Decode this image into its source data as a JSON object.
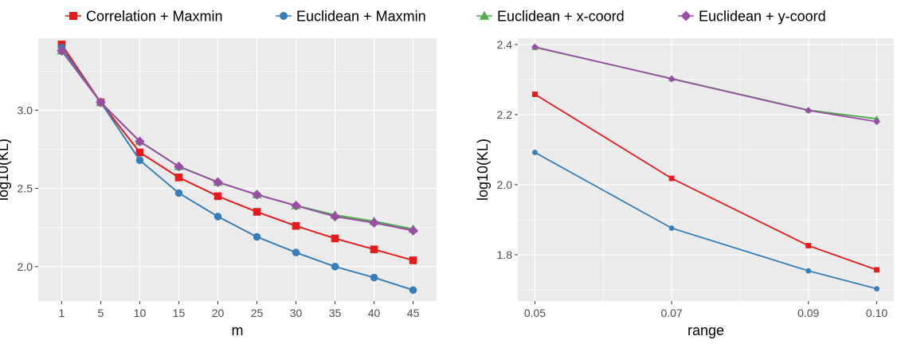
{
  "legend": [
    {
      "name": "Correlation + Maxmin",
      "color": "#e41a1c",
      "marker": "square"
    },
    {
      "name": "Euclidean + Maxmin",
      "color": "#377eb8",
      "marker": "circle"
    },
    {
      "name": "Euclidean + x-coord",
      "color": "#4daf4a",
      "marker": "triangle"
    },
    {
      "name": "Euclidean + y-coord",
      "color": "#984ea3",
      "marker": "diamond"
    }
  ],
  "chart_data": [
    {
      "type": "line",
      "xlabel": "m",
      "ylabel": "log10(KL)",
      "x_scale": "categorical",
      "categories": [
        "1",
        "5",
        "10",
        "15",
        "20",
        "25",
        "30",
        "35",
        "40",
        "45"
      ],
      "yticks": [
        "2.0",
        "2.5",
        "3.0"
      ],
      "ylim": [
        1.78,
        3.46
      ],
      "grid": true,
      "legend_position": "top",
      "series": [
        {
          "name": "Correlation + Maxmin",
          "values": [
            3.42,
            3.05,
            2.73,
            2.57,
            2.45,
            2.35,
            2.26,
            2.18,
            2.11,
            2.04
          ]
        },
        {
          "name": "Euclidean + Maxmin",
          "values": [
            3.4,
            3.05,
            2.68,
            2.47,
            2.32,
            2.19,
            2.09,
            2.0,
            1.93,
            1.85
          ]
        },
        {
          "name": "Euclidean + x-coord",
          "values": [
            3.38,
            3.05,
            2.8,
            2.64,
            2.54,
            2.46,
            2.39,
            2.33,
            2.29,
            2.24
          ]
        },
        {
          "name": "Euclidean + y-coord",
          "values": [
            3.38,
            3.05,
            2.8,
            2.64,
            2.54,
            2.46,
            2.39,
            2.32,
            2.28,
            2.23
          ]
        }
      ]
    },
    {
      "type": "line",
      "xlabel": "range",
      "ylabel": "log10(KL)",
      "x_scale": "numeric",
      "x": [
        0.05,
        0.07,
        0.09,
        0.1
      ],
      "xticks": [
        "0.05",
        "0.07",
        "0.09",
        "0.10"
      ],
      "yticks": [
        "1.8",
        "2.0",
        "2.2",
        "2.4"
      ],
      "xlim": [
        0.0475,
        0.1025
      ],
      "ylim": [
        1.668,
        2.418
      ],
      "grid": true,
      "series": [
        {
          "name": "Correlation + Maxmin",
          "values": [
            2.258,
            2.018,
            1.826,
            1.757
          ]
        },
        {
          "name": "Euclidean + Maxmin",
          "values": [
            2.092,
            1.876,
            1.754,
            1.703
          ]
        },
        {
          "name": "Euclidean + x-coord",
          "values": [
            2.392,
            2.303,
            2.213,
            2.188
          ]
        },
        {
          "name": "Euclidean + y-coord",
          "values": [
            2.393,
            2.302,
            2.212,
            2.18
          ]
        }
      ]
    }
  ]
}
